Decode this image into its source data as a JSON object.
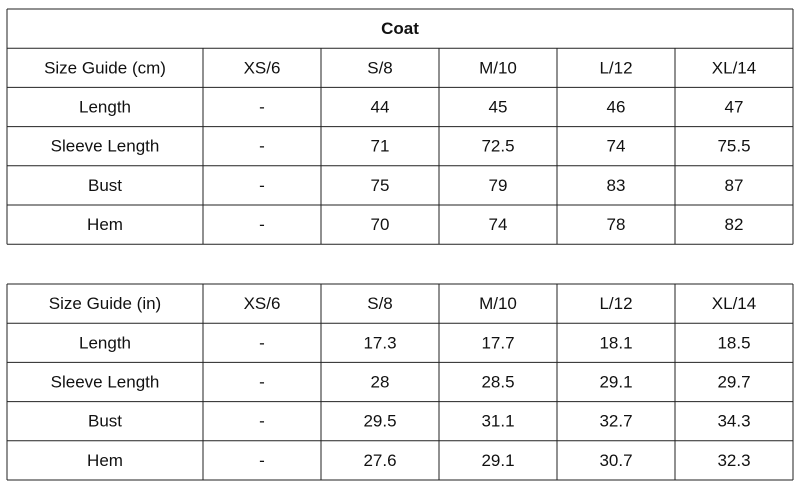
{
  "tables": [
    {
      "title": "Coat",
      "header": [
        "Size Guide (cm)",
        "XS/6",
        "S/8",
        "M/10",
        "L/12",
        "XL/14"
      ],
      "rows": [
        [
          "Length",
          "-",
          "44",
          "45",
          "46",
          "47"
        ],
        [
          "Sleeve Length",
          "-",
          "71",
          "72.5",
          "74",
          "75.5"
        ],
        [
          "Bust",
          "-",
          "75",
          "79",
          "83",
          "87"
        ],
        [
          "Hem",
          "-",
          "70",
          "74",
          "78",
          "82"
        ]
      ]
    },
    {
      "header": [
        "Size Guide (in)",
        "XS/6",
        "S/8",
        "M/10",
        "L/12",
        "XL/14"
      ],
      "rows": [
        [
          "Length",
          "-",
          "17.3",
          "17.7",
          "18.1",
          "18.5"
        ],
        [
          "Sleeve Length",
          "-",
          "28",
          "28.5",
          "29.1",
          "29.7"
        ],
        [
          "Bust",
          "-",
          "29.5",
          "31.1",
          "32.7",
          "34.3"
        ],
        [
          "Hem",
          "-",
          "27.6",
          "29.1",
          "30.7",
          "32.3"
        ]
      ]
    }
  ]
}
